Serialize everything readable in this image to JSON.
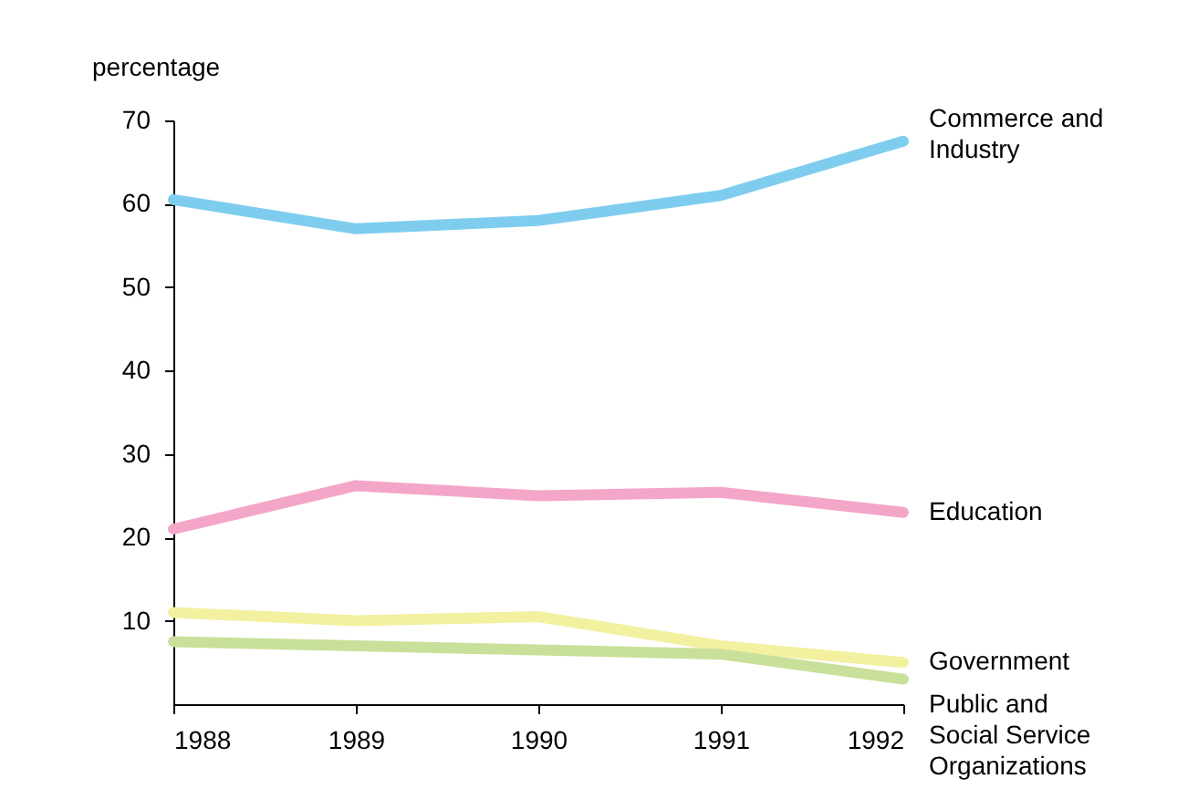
{
  "chart_data": {
    "type": "line",
    "ylabel": "percentage",
    "x": [
      1988,
      1989,
      1990,
      1991,
      1992
    ],
    "xlim": [
      1988,
      1992
    ],
    "xticks": [
      1988,
      1989,
      1990,
      1991,
      1992
    ],
    "ylim": [
      0,
      70
    ],
    "yticks": [
      10,
      20,
      30,
      40,
      50,
      60,
      70
    ],
    "grid": false,
    "legend": false,
    "marker": "none",
    "line_style": "solid",
    "series": [
      {
        "name": "Commerce and Industry",
        "color": "#7fcdee",
        "values": [
          60.5,
          57,
          58,
          61,
          67.5
        ]
      },
      {
        "name": "Education",
        "color": "#f4a6c8",
        "values": [
          21,
          26.2,
          25,
          25.4,
          23
        ]
      },
      {
        "name": "Government",
        "color": "#f3f0a0",
        "values": [
          11,
          10,
          10.5,
          7,
          5
        ]
      },
      {
        "name": "Public and Social Service Organizations",
        "color": "#c9e09a",
        "values": [
          7.5,
          7,
          6.5,
          6,
          3
        ]
      }
    ]
  }
}
